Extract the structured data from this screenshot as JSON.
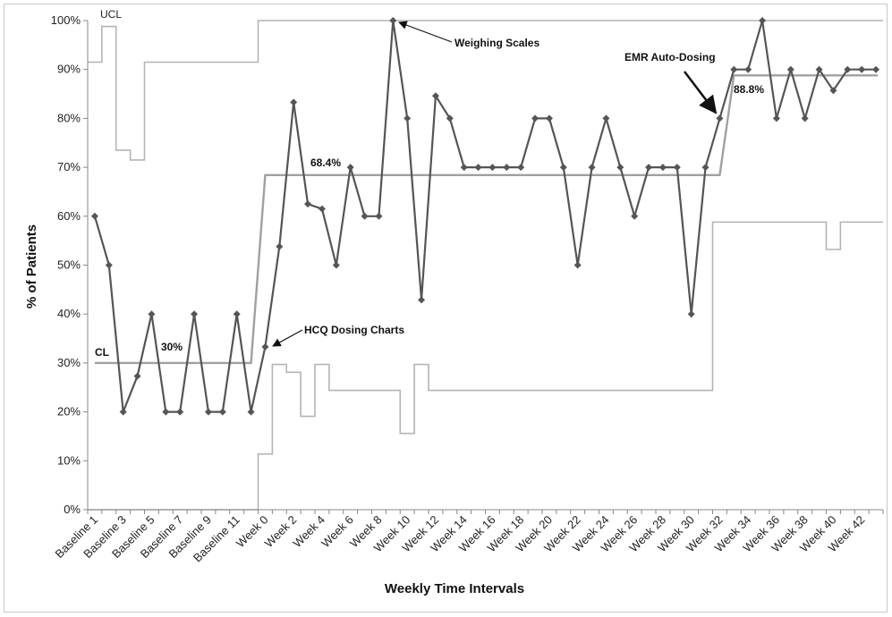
{
  "chart_data": {
    "type": "line",
    "title": "",
    "xlabel": "Weekly Time Intervals",
    "ylabel": "% of Patients",
    "ylim": [
      0,
      100
    ],
    "yticks": [
      "0%",
      "10%",
      "20%",
      "30%",
      "40%",
      "50%",
      "60%",
      "70%",
      "80%",
      "90%",
      "100%"
    ],
    "categories": [
      "Baseline 1",
      "Baseline 2",
      "Baseline 3",
      "Baseline 4",
      "Baseline 5",
      "Baseline 6",
      "Baseline 7",
      "Baseline 8",
      "Baseline 9",
      "Baseline 10",
      "Baseline 11",
      "Baseline 12",
      "Week 0",
      "Week 1",
      "Week 2",
      "Week 3",
      "Week 4",
      "Week 5",
      "Week 6",
      "Week 7",
      "Week 8",
      "Week 9",
      "Week 10",
      "Week 11",
      "Week 12",
      "Week 13",
      "Week 14",
      "Week 15",
      "Week 16",
      "Week 17",
      "Week 18",
      "Week 19",
      "Week 20",
      "Week 21",
      "Week 22",
      "Week 23",
      "Week 24",
      "Week 25",
      "Week 26",
      "Week 27",
      "Week 28",
      "Week 29",
      "Week 30",
      "Week 31",
      "Week 32",
      "Week 33",
      "Week 34",
      "Week 35",
      "Week 36",
      "Week 37",
      "Week 38",
      "Week 39",
      "Week 40",
      "Week 41",
      "Week 42",
      "Week 43"
    ],
    "shown_tick_labels": [
      "Baseline 1",
      "Baseline 3",
      "Baseline 5",
      "Baseline 7",
      "Baseline 9",
      "Baseline 11",
      "Week 0",
      "Week 2",
      "Week 4",
      "Week 6",
      "Week 8",
      "Week 10",
      "Week 12",
      "Week 14",
      "Week 16",
      "Week 18",
      "Week 20",
      "Week 22",
      "Week 24",
      "Week 26",
      "Week 28",
      "Week 30",
      "Week 32",
      "Week 34",
      "Week 36",
      "Week 38",
      "Week 40",
      "Week 42"
    ],
    "series": [
      {
        "values": [
          60,
          50,
          20,
          27.3,
          40,
          20,
          20,
          40,
          20,
          20,
          40,
          20,
          33.3,
          53.8,
          83.3,
          62.5,
          61.5,
          50,
          70,
          60,
          60,
          100,
          80,
          42.9,
          84.6,
          80,
          70,
          70,
          70,
          70,
          70,
          80,
          80,
          70,
          50,
          70,
          80,
          70,
          60,
          70,
          70,
          70,
          40,
          70,
          80,
          90,
          90,
          100,
          80,
          90,
          80,
          90,
          85.7,
          90,
          90,
          90
        ]
      },
      {
        "values": [
          30,
          30,
          30,
          30,
          30,
          30,
          30,
          30,
          30,
          30,
          30,
          30,
          68.4,
          68.4,
          68.4,
          68.4,
          68.4,
          68.4,
          68.4,
          68.4,
          68.4,
          68.4,
          68.4,
          68.4,
          68.4,
          68.4,
          68.4,
          68.4,
          68.4,
          68.4,
          68.4,
          68.4,
          68.4,
          68.4,
          68.4,
          68.4,
          68.4,
          68.4,
          68.4,
          68.4,
          68.4,
          68.4,
          68.4,
          68.4,
          68.4,
          88.8,
          88.8,
          88.8,
          88.8,
          88.8,
          88.8,
          88.8,
          88.8,
          88.8,
          88.8,
          88.8
        ]
      },
      {
        "values": [
          91.5,
          98.8,
          73.5,
          71.5,
          91.5,
          91.5,
          91.5,
          91.5,
          91.5,
          91.5,
          91.5,
          91.5,
          100,
          100,
          100,
          100,
          100,
          100,
          100,
          100,
          100,
          100,
          100,
          100,
          100,
          100,
          100,
          100,
          100,
          100,
          100,
          100,
          100,
          100,
          100,
          100,
          100,
          100,
          100,
          100,
          100,
          100,
          100,
          100,
          100,
          100,
          100,
          100,
          100,
          100,
          100,
          100,
          100,
          100,
          100,
          100
        ]
      },
      {
        "values": [
          0,
          0,
          0,
          0,
          0,
          0,
          0,
          0,
          0,
          0,
          0,
          0,
          11.4,
          29.7,
          28.1,
          19.1,
          29.7,
          24.4,
          24.4,
          24.4,
          24.4,
          24.4,
          15.6,
          29.7,
          24.4,
          24.4,
          24.4,
          24.4,
          24.4,
          24.4,
          24.4,
          24.4,
          24.4,
          24.4,
          24.4,
          24.4,
          24.4,
          24.4,
          24.4,
          24.4,
          24.4,
          24.4,
          24.4,
          24.4,
          58.8,
          58.8,
          58.8,
          58.8,
          58.8,
          58.8,
          58.8,
          58.8,
          53.2,
          58.8,
          58.8,
          58.8
        ]
      }
    ],
    "annotations": {
      "ucl": "UCL",
      "cl": "CL",
      "baseline_cl": "30%",
      "phase2_cl": "68.4%",
      "phase3_cl": "88.8%",
      "hcq": "HCQ Dosing Charts",
      "scales": "Weighing Scales",
      "emr": "EMR Auto-Dosing"
    },
    "colors": {
      "data": "#555555",
      "center": "#a0a0a0",
      "limits": "#b4b4b4",
      "marker": "#555555"
    },
    "grid": false,
    "legend": "none"
  }
}
